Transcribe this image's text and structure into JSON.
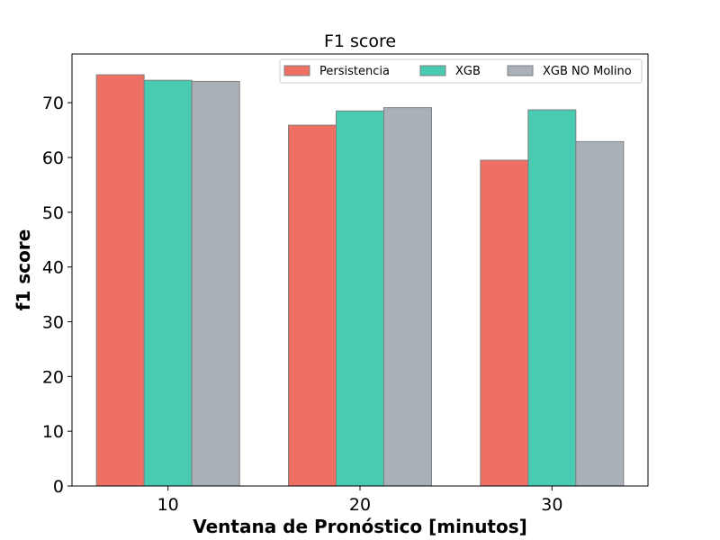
{
  "chart_data": {
    "type": "bar",
    "title": "F1 score",
    "xlabel": "Ventana de Pronóstico [minutos]",
    "ylabel": "f1 score",
    "categories": [
      "10",
      "20",
      "30"
    ],
    "series": [
      {
        "name": "Persistencia",
        "color": "#EE6F64",
        "values": [
          75.1,
          65.9,
          59.5
        ]
      },
      {
        "name": "XGB",
        "color": "#49CBB1",
        "values": [
          74.1,
          68.5,
          68.7
        ]
      },
      {
        "name": "XGB NO Molino",
        "color": "#AAB0B8",
        "values": [
          73.9,
          69.1,
          62.9
        ]
      }
    ],
    "ylim": [
      0,
      78.9
    ],
    "yticks": [
      0,
      10,
      20,
      30,
      40,
      50,
      60,
      70
    ],
    "grid": false,
    "legend_position": "top-right",
    "bar_edge_color": "#7F7F7F"
  }
}
